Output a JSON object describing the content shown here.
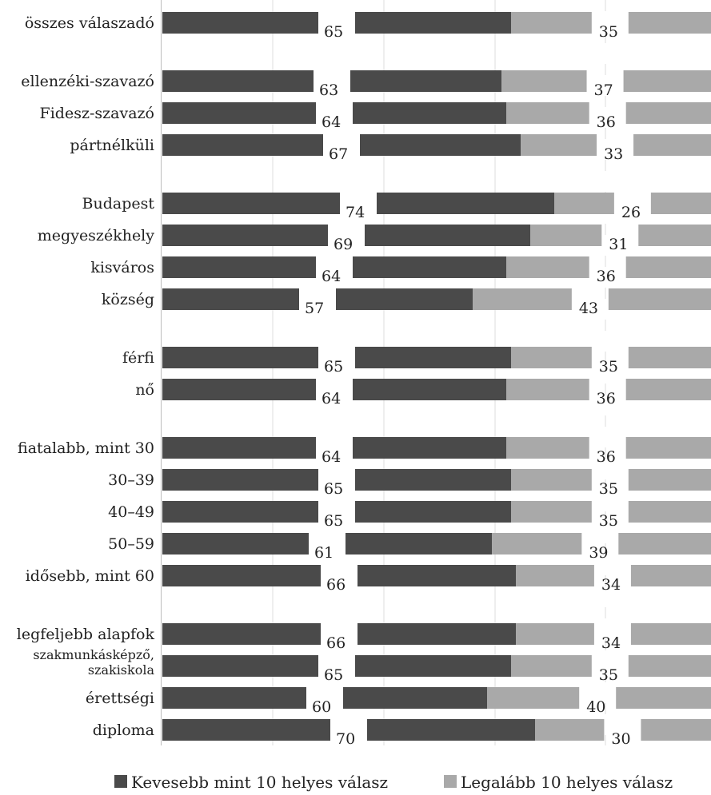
{
  "chart_data": {
    "type": "bar",
    "stacked": true,
    "orientation": "horizontal",
    "categories": [
      "összes válaszadó",
      "ellenzéki-szavazó",
      "Fidesz-szavazó",
      "pártnélküli",
      "Budapest",
      "megyeszékhely",
      "kisváros",
      "község",
      "férfi",
      "nő",
      "fiatalabb, mint 30",
      "30–39",
      "40–49",
      "50–59",
      "idősebb, mint 60",
      "legfeljebb alapfok",
      "szakmunkásképző, szakiskola",
      "érettségi",
      "diploma"
    ],
    "category_lines": {
      "16": [
        "szakmunkásképző,",
        "szakiskola"
      ]
    },
    "series": [
      {
        "name": "Kevesebb mint 10 helyes válasz",
        "color": "#4a4a4a",
        "values": [
          65,
          63,
          64,
          67,
          74,
          69,
          64,
          57,
          65,
          64,
          64,
          65,
          65,
          61,
          66,
          66,
          65,
          60,
          70
        ]
      },
      {
        "name": "Legalább 10 helyes válasz",
        "color": "#a9a9a9",
        "values": [
          35,
          37,
          36,
          33,
          26,
          31,
          36,
          43,
          35,
          36,
          36,
          35,
          35,
          39,
          34,
          34,
          35,
          40,
          30
        ]
      }
    ],
    "group_ends": [
      0,
      3,
      7,
      9,
      14
    ],
    "grid": true,
    "legend_position": "bottom"
  }
}
